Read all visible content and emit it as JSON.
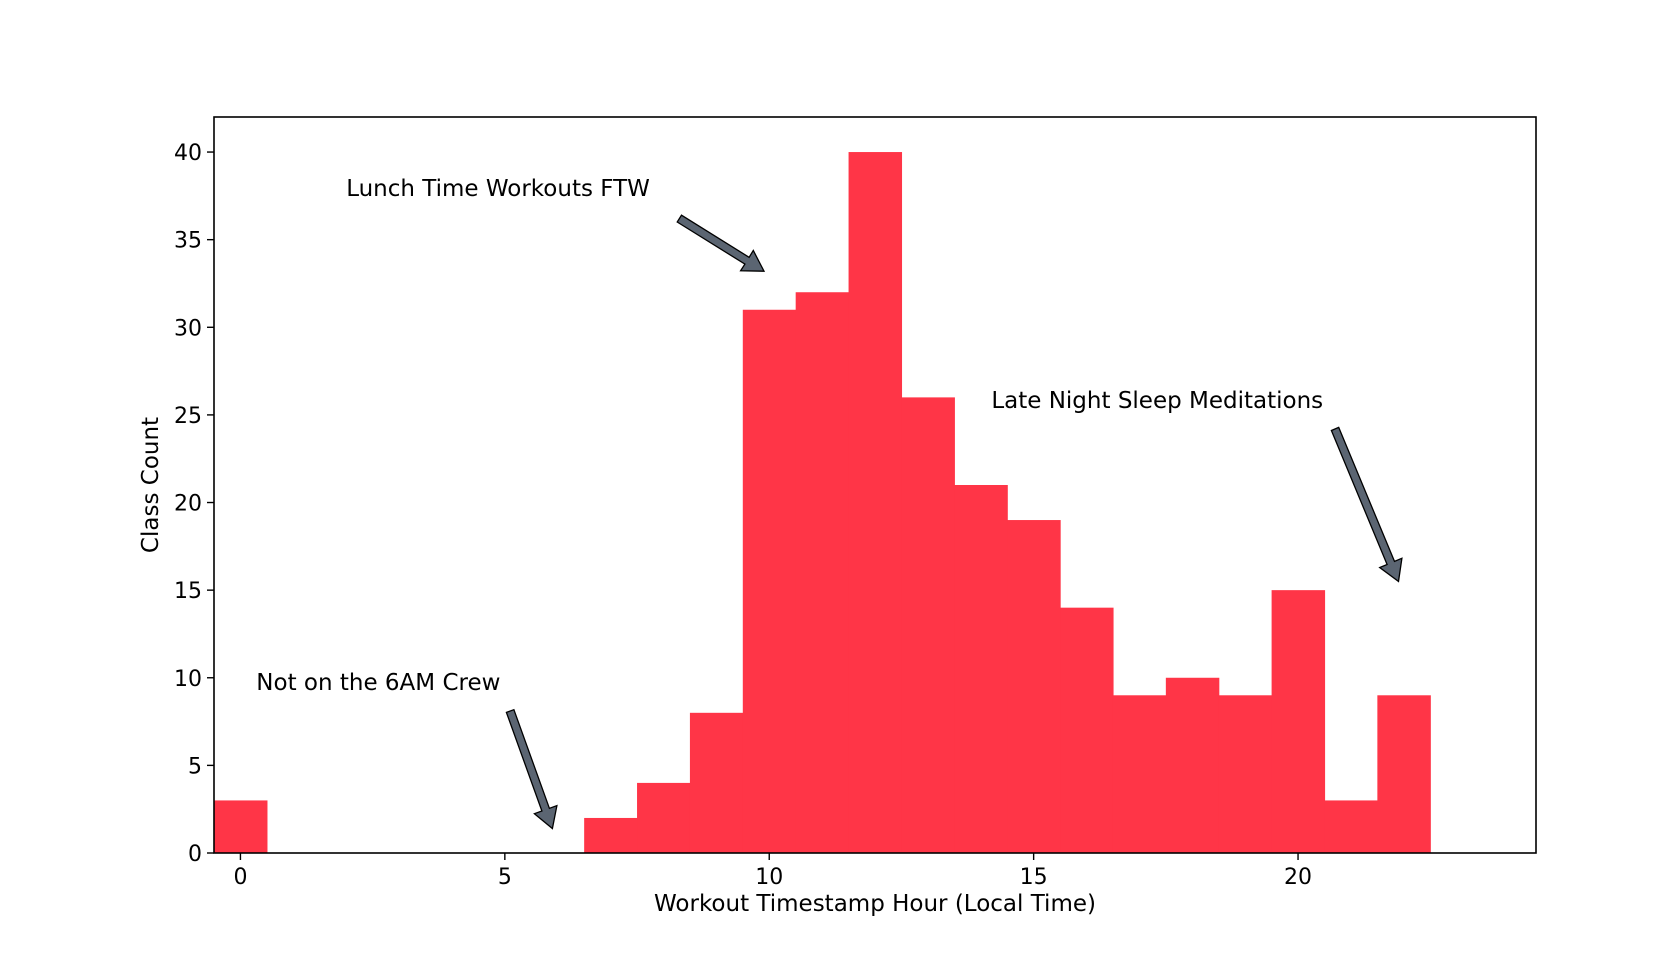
{
  "chart_data": {
    "type": "bar",
    "bin_width": 1,
    "x": [
      0,
      1,
      2,
      3,
      4,
      5,
      6,
      7,
      8,
      9,
      10,
      11,
      12,
      13,
      14,
      15,
      16,
      17,
      18,
      19,
      20,
      21,
      22
    ],
    "values": [
      3,
      0,
      0,
      0,
      0,
      0,
      0,
      2,
      4,
      8,
      31,
      32,
      40,
      26,
      21,
      19,
      14,
      9,
      10,
      9,
      15,
      3,
      9
    ],
    "xlabel": "Workout Timestamp Hour (Local Time)",
    "ylabel": "Class Count",
    "xlim": [
      -0.5,
      24.5
    ],
    "ylim": [
      0,
      42
    ],
    "xticks": [
      0,
      5,
      10,
      15,
      20
    ],
    "yticks": [
      0,
      5,
      10,
      15,
      20,
      25,
      30,
      35,
      40
    ],
    "grid": false,
    "bar_color": "#ff3547",
    "arrow_color": "#5b6572",
    "annotations": [
      {
        "text": "Lunch Time Workouts FTW",
        "text_pos": [
          2,
          37.5
        ],
        "arrow_tail": [
          8.3,
          36.2
        ],
        "arrow_head": [
          9.9,
          33.2
        ]
      },
      {
        "text": "Late Night Sleep Meditations",
        "text_pos": [
          14.2,
          25.4
        ],
        "arrow_tail": [
          20.7,
          24.2
        ],
        "arrow_head": [
          21.9,
          15.5
        ]
      },
      {
        "text": "Not on the 6AM Crew",
        "text_pos": [
          0.3,
          9.3
        ],
        "arrow_tail": [
          5.1,
          8.1
        ],
        "arrow_head": [
          5.9,
          1.4
        ]
      }
    ]
  }
}
